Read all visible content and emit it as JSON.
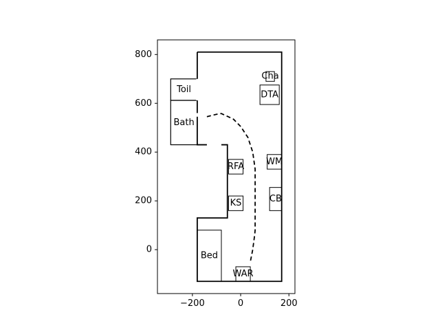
{
  "chart_data": {
    "type": "floorplan",
    "title": "",
    "xlabel": "",
    "ylabel": "",
    "xlim": [
      -345,
      225
    ],
    "ylim": [
      -180,
      860
    ],
    "x_ticks": [
      {
        "value": -200,
        "label": "−200"
      },
      {
        "value": 0,
        "label": "0"
      },
      {
        "value": 200,
        "label": "200"
      }
    ],
    "y_ticks": [
      {
        "value": 0,
        "label": "0"
      },
      {
        "value": 200,
        "label": "200"
      },
      {
        "value": 400,
        "label": "400"
      },
      {
        "value": 600,
        "label": "600"
      },
      {
        "value": 800,
        "label": "800"
      }
    ],
    "grid": false,
    "wall_outline": [
      [
        -180,
        810
      ],
      [
        170,
        810
      ],
      [
        170,
        -130
      ],
      [
        -180,
        -130
      ],
      [
        -180,
        130
      ],
      [
        -55,
        130
      ],
      [
        -55,
        430
      ],
      [
        -180,
        430
      ],
      [
        -180,
        810
      ]
    ],
    "door_gaps": [
      {
        "segment": [
          [
            -180,
            700
          ],
          [
            -180,
            612
          ]
        ]
      },
      {
        "segment": [
          [
            -180,
            560
          ],
          [
            -180,
            545
          ]
        ]
      },
      {
        "segment": [
          [
            -140,
            430
          ],
          [
            -80,
            430
          ]
        ]
      }
    ],
    "rooms": [
      {
        "label": "Toil",
        "x0": -290,
        "y0": 612,
        "x1": -180,
        "y1": 700
      },
      {
        "label": "Bath",
        "x0": -290,
        "y0": 430,
        "x1": -180,
        "y1": 612
      }
    ],
    "furniture": [
      {
        "label": "Cha",
        "x0": 105,
        "y0": 690,
        "x1": 140,
        "y1": 730
      },
      {
        "label": "DTA",
        "x0": 80,
        "y0": 595,
        "x1": 160,
        "y1": 675
      },
      {
        "label": "RFA",
        "x0": -50,
        "y0": 310,
        "x1": 10,
        "y1": 370
      },
      {
        "label": "KS",
        "x0": -50,
        "y0": 160,
        "x1": 10,
        "y1": 220
      },
      {
        "label": "WM",
        "x0": 110,
        "y0": 330,
        "x1": 170,
        "y1": 390
      },
      {
        "label": "CB",
        "x0": 120,
        "y0": 160,
        "x1": 170,
        "y1": 255
      },
      {
        "label": "Bed",
        "x0": -180,
        "y0": -130,
        "x1": -80,
        "y1": 80
      },
      {
        "label": "WAR",
        "x0": -20,
        "y0": -130,
        "x1": 40,
        "y1": -70
      }
    ],
    "path": {
      "style": "dashed",
      "x": [
        -140,
        -100,
        -80,
        -30,
        0,
        30,
        50,
        60,
        60,
        60,
        58,
        50,
        40
      ],
      "y": [
        545,
        555,
        558,
        535,
        505,
        460,
        400,
        330,
        200,
        80,
        60,
        0,
        -50
      ]
    },
    "colors": {
      "line": "#000000",
      "background": "#ffffff"
    }
  }
}
